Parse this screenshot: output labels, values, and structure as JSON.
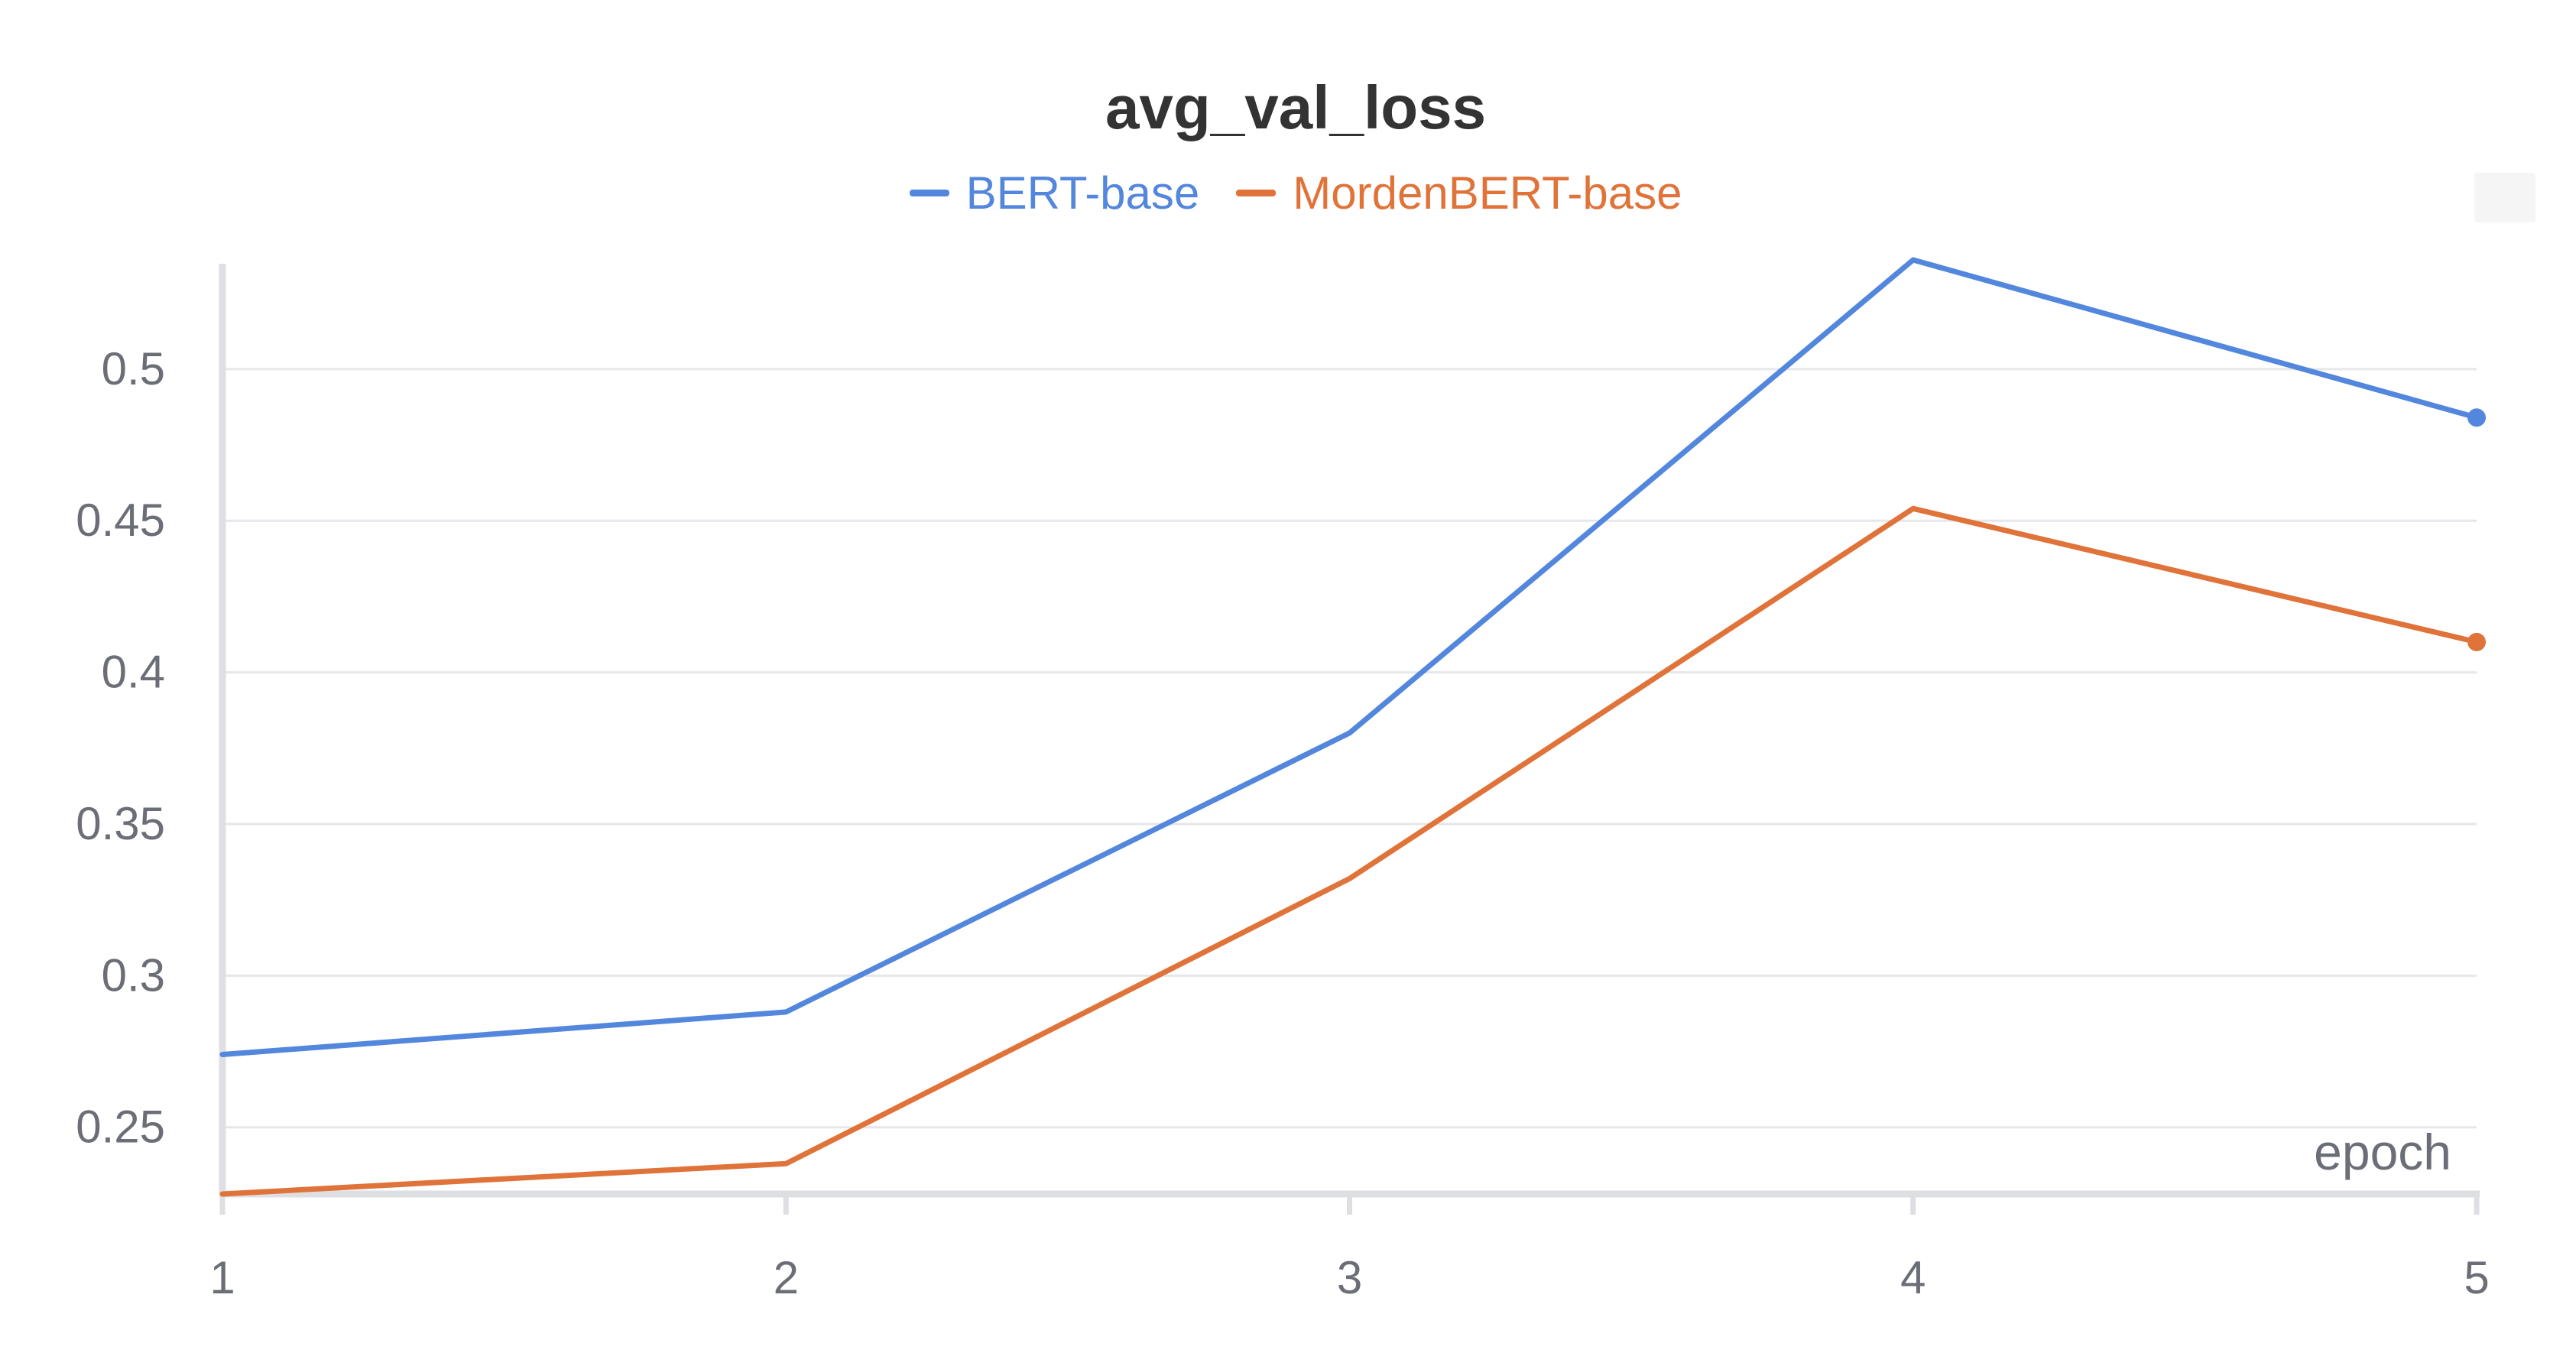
{
  "chart_data": {
    "type": "line",
    "title": "avg_val_loss",
    "xlabel": "epoch",
    "ylabel": "",
    "x": [
      1,
      2,
      3,
      4,
      5
    ],
    "xticks": [
      "1",
      "2",
      "3",
      "4",
      "5"
    ],
    "yticks": [
      "0.25",
      "0.3",
      "0.35",
      "0.4",
      "0.45",
      "0.5"
    ],
    "ylim": [
      0.228,
      0.536
    ],
    "xlim": [
      1,
      5
    ],
    "grid": true,
    "legend": "top-center",
    "series": [
      {
        "name": "BERT-base",
        "color": "#5387dd",
        "values": [
          0.274,
          0.288,
          0.38,
          0.536,
          0.484
        ]
      },
      {
        "name": "MordenBERT-base",
        "color": "#e07339",
        "values": [
          0.228,
          0.238,
          0.332,
          0.454,
          0.41
        ]
      }
    ]
  }
}
